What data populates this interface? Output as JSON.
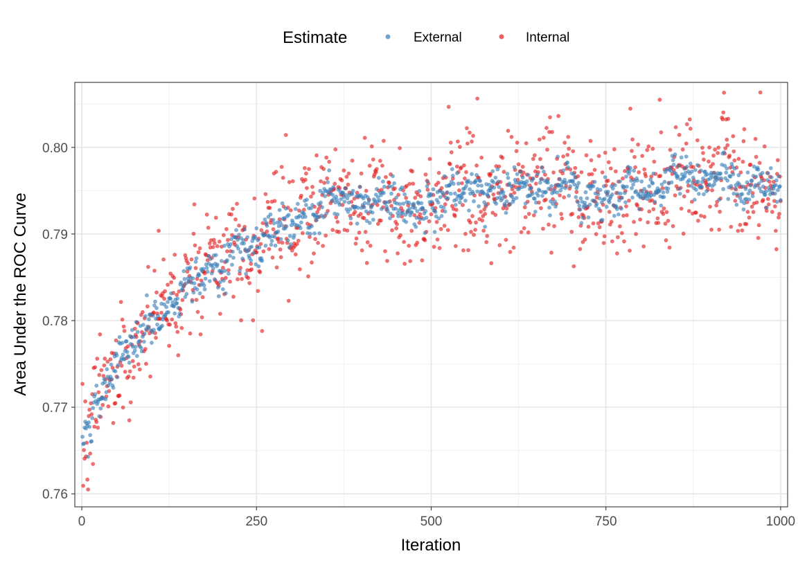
{
  "chart_data": {
    "type": "scatter",
    "xlabel": "Iteration",
    "ylabel": "Area Under the ROC Curve",
    "xlim": [
      -10,
      1010
    ],
    "ylim": [
      0.7585,
      0.8075
    ],
    "x_ticks": [
      0,
      250,
      500,
      750,
      1000
    ],
    "x_tick_labels": [
      "0",
      "250",
      "500",
      "750",
      "1000"
    ],
    "y_ticks": [
      0.76,
      0.77,
      0.78,
      0.79,
      0.8
    ],
    "y_tick_labels": [
      "0.76",
      "0.77",
      "0.78",
      "0.79",
      "0.80"
    ],
    "grid": true,
    "legend": {
      "title": "Estimate",
      "position": "top",
      "entries": [
        "External",
        "Internal"
      ]
    },
    "series": [
      {
        "name": "External",
        "color": "#377EB8",
        "n_points": 1000,
        "trend": {
          "start": 0.7655,
          "plateau": 0.7955,
          "rate_per_iter": 0.0068,
          "end": 0.7955
        },
        "noise_sd": 0.0011
      },
      {
        "name": "Internal",
        "color": "#E41A1C",
        "n_points": 1000,
        "trend": {
          "start": 0.7655,
          "plateau": 0.7955,
          "rate_per_iter": 0.0068,
          "end": 0.7955
        },
        "noise_sd": 0.0032,
        "max": {
          "x": 826,
          "y": 0.8055
        },
        "min": {
          "x": 8,
          "y": 0.7605
        }
      }
    ]
  }
}
